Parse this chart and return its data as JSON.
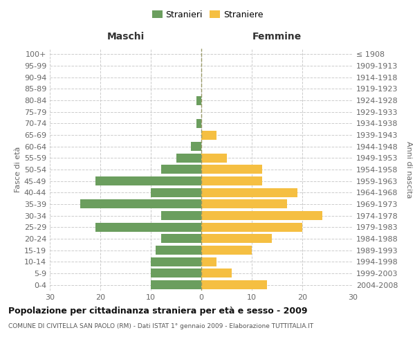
{
  "age_groups": [
    "100+",
    "95-99",
    "90-94",
    "85-89",
    "80-84",
    "75-79",
    "70-74",
    "65-69",
    "60-64",
    "55-59",
    "50-54",
    "45-49",
    "40-44",
    "35-39",
    "30-34",
    "25-29",
    "20-24",
    "15-19",
    "10-14",
    "5-9",
    "0-4"
  ],
  "birth_years": [
    "≤ 1908",
    "1909-1913",
    "1914-1918",
    "1919-1923",
    "1924-1928",
    "1929-1933",
    "1934-1938",
    "1939-1943",
    "1944-1948",
    "1949-1953",
    "1954-1958",
    "1959-1963",
    "1964-1968",
    "1969-1973",
    "1974-1978",
    "1979-1983",
    "1984-1988",
    "1989-1993",
    "1994-1998",
    "1999-2003",
    "2004-2008"
  ],
  "maschi": [
    0,
    0,
    0,
    0,
    1,
    0,
    1,
    0,
    2,
    5,
    8,
    21,
    10,
    24,
    8,
    21,
    8,
    9,
    10,
    10,
    10
  ],
  "femmine": [
    0,
    0,
    0,
    0,
    0,
    0,
    0,
    3,
    0,
    5,
    12,
    12,
    19,
    17,
    24,
    20,
    14,
    10,
    3,
    6,
    13
  ],
  "color_maschi": "#6b9e5e",
  "color_femmine": "#f5bf42",
  "background_color": "#ffffff",
  "grid_color": "#cccccc",
  "xlim": 30,
  "title": "Popolazione per cittadinanza straniera per età e sesso - 2009",
  "subtitle": "COMUNE DI CIVITELLA SAN PAOLO (RM) - Dati ISTAT 1° gennaio 2009 - Elaborazione TUTTITALIA.IT",
  "xlabel_left": "Maschi",
  "xlabel_right": "Femmine",
  "ylabel_left": "Fasce di età",
  "ylabel_right": "Anni di nascita",
  "legend_maschi": "Stranieri",
  "legend_femmine": "Straniere",
  "center_line_color": "#999966",
  "title_fontsize": 9,
  "subtitle_fontsize": 6.5
}
